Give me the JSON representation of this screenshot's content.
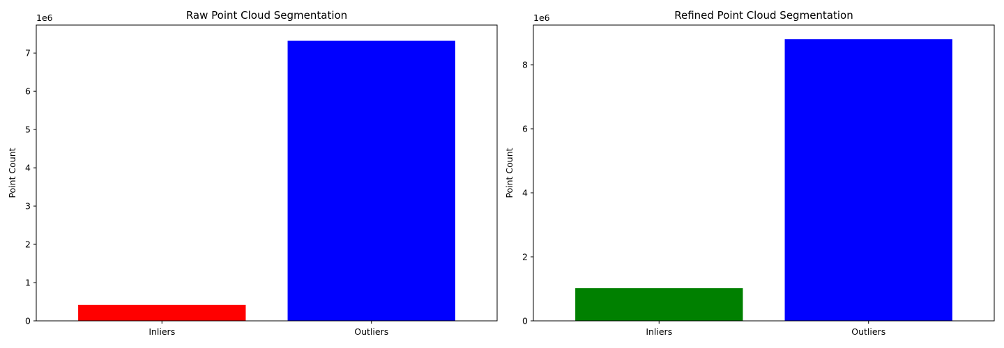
{
  "chart_data": [
    {
      "type": "bar",
      "title": "Raw Point Cloud Segmentation",
      "xlabel": "",
      "ylabel": "Point Count",
      "offset_label": "1e6",
      "categories": [
        "Inliers",
        "Outliers"
      ],
      "values": [
        420000,
        7320000
      ],
      "colors": [
        "#ff0000",
        "#0000ff"
      ],
      "ylim": [
        0,
        7731000
      ],
      "yticks": [
        0,
        1000000,
        2000000,
        3000000,
        4000000,
        5000000,
        6000000,
        7000000
      ],
      "ytick_labels": [
        "0",
        "1",
        "2",
        "3",
        "4",
        "5",
        "6",
        "7"
      ],
      "grid": false
    },
    {
      "type": "bar",
      "title": "Refined Point Cloud Segmentation",
      "xlabel": "",
      "ylabel": "Point Count",
      "offset_label": "1e6",
      "categories": [
        "Inliers",
        "Outliers"
      ],
      "values": [
        1020000,
        8800000
      ],
      "colors": [
        "#008000",
        "#0000ff"
      ],
      "ylim": [
        0,
        9240000
      ],
      "yticks": [
        0,
        2000000,
        4000000,
        6000000,
        8000000
      ],
      "ytick_labels": [
        "0",
        "2",
        "4",
        "6",
        "8"
      ],
      "grid": false
    }
  ]
}
